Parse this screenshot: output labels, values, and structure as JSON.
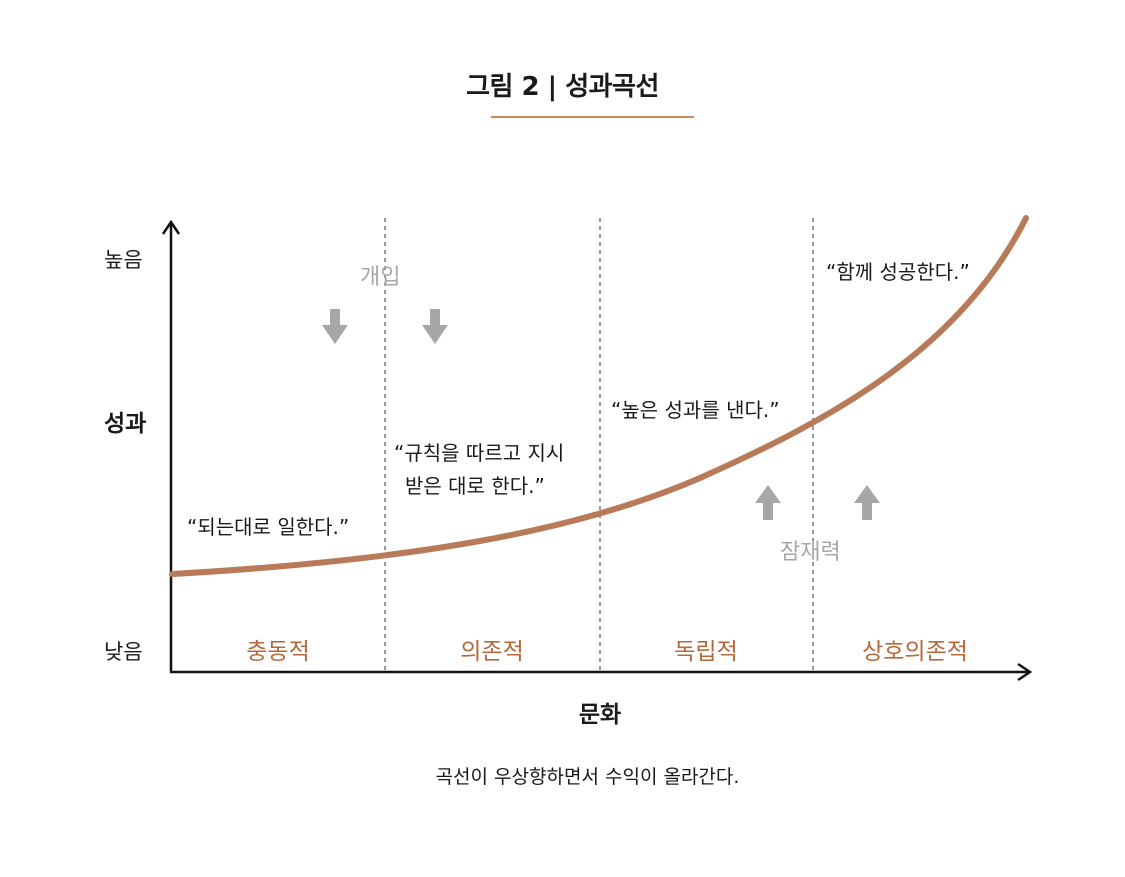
{
  "title": "그림 2 | 성과곡선",
  "y_axis": {
    "title": "성과",
    "high": "높음",
    "low": "낮음"
  },
  "x_axis": {
    "title": "문화"
  },
  "stages": [
    "충동적",
    "의존적",
    "독립적",
    "상호의존적"
  ],
  "quotes": {
    "impulsive": "“되는대로 일한다.”",
    "dependent_line1": "“규칙을 따르고 지시",
    "dependent_line2": "받은 대로 한다.”",
    "independent": "“높은 성과를 낸다.”",
    "interdependent": "“함께 성공한다.”"
  },
  "annotations": {
    "intervention": "개입",
    "potential": "잠재력"
  },
  "caption": "곡선이 우상향하면서 수익이 올라간다.",
  "colors": {
    "curve": "#b87a58",
    "stage_label": "#b5683b",
    "title_rule": "#c98b55",
    "arrow": "#a7a7a7",
    "axis": "#111111"
  },
  "icons": {
    "down_arrows": 2,
    "up_arrows": 2
  }
}
